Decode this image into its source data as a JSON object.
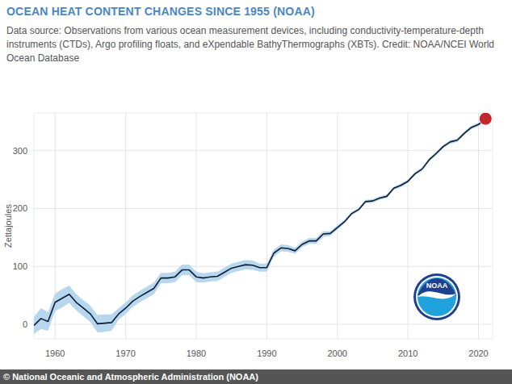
{
  "chart_data": {
    "type": "line",
    "title": "OCEAN HEAT CONTENT CHANGES SINCE 1955 (NOAA)",
    "subtitle": "Data source: Observations from various ocean measurement devices, including conductivity-temperature-depth instruments (CTDs), Argo profiling floats, and eXpendable BathyThermographs (XBTs). Credit: NOAA/NCEI World Ocean Database",
    "y_label": "Zettajoules",
    "logo_text": "NOAA",
    "credit": "© National Oceanic and Atmospheric Administration (NOAA)",
    "x": [
      1957,
      1958,
      1959,
      1960,
      1961,
      1962,
      1963,
      1964,
      1965,
      1966,
      1967,
      1968,
      1969,
      1970,
      1971,
      1972,
      1973,
      1974,
      1975,
      1976,
      1977,
      1978,
      1979,
      1980,
      1981,
      1982,
      1983,
      1984,
      1985,
      1986,
      1987,
      1988,
      1989,
      1990,
      1991,
      1992,
      1993,
      1994,
      1995,
      1996,
      1997,
      1998,
      1999,
      2000,
      2001,
      2002,
      2003,
      2004,
      2005,
      2006,
      2007,
      2008,
      2009,
      2010,
      2011,
      2012,
      2013,
      2014,
      2015,
      2016,
      2017,
      2018,
      2019,
      2020,
      2021
    ],
    "values": [
      -2,
      10,
      5,
      38,
      45,
      52,
      38,
      28,
      18,
      1,
      2,
      3,
      18,
      28,
      40,
      48,
      55,
      62,
      80,
      80,
      82,
      94,
      94,
      82,
      80,
      82,
      83,
      90,
      97,
      100,
      103,
      102,
      98,
      98,
      123,
      132,
      131,
      127,
      138,
      144,
      144,
      156,
      157,
      167,
      177,
      191,
      198,
      212,
      213,
      218,
      221,
      235,
      240,
      247,
      260,
      268,
      284,
      295,
      307,
      315,
      318,
      330,
      340,
      345,
      355
    ],
    "error": [
      15,
      18,
      16,
      15,
      16,
      15,
      14,
      14,
      14,
      15,
      15,
      14,
      10,
      10,
      10,
      10,
      10,
      10,
      9,
      9,
      9,
      9,
      9,
      9,
      8,
      8,
      8,
      8,
      8,
      8,
      8,
      8,
      7,
      7,
      6,
      6,
      6,
      5,
      5,
      5,
      5,
      5,
      4,
      4,
      3,
      3,
      3,
      3,
      3,
      3,
      3,
      3,
      3,
      3,
      3,
      3,
      3,
      3,
      3,
      3,
      3,
      3,
      3,
      3,
      3
    ],
    "color": "#0d1b33",
    "xlim": [
      1957,
      2022
    ],
    "ylim": [
      -25,
      365
    ],
    "xticks": [
      1960,
      1970,
      1980,
      1990,
      2000,
      2010,
      2020
    ],
    "yticks": [
      0,
      100,
      200,
      300
    ],
    "grid": true
  }
}
